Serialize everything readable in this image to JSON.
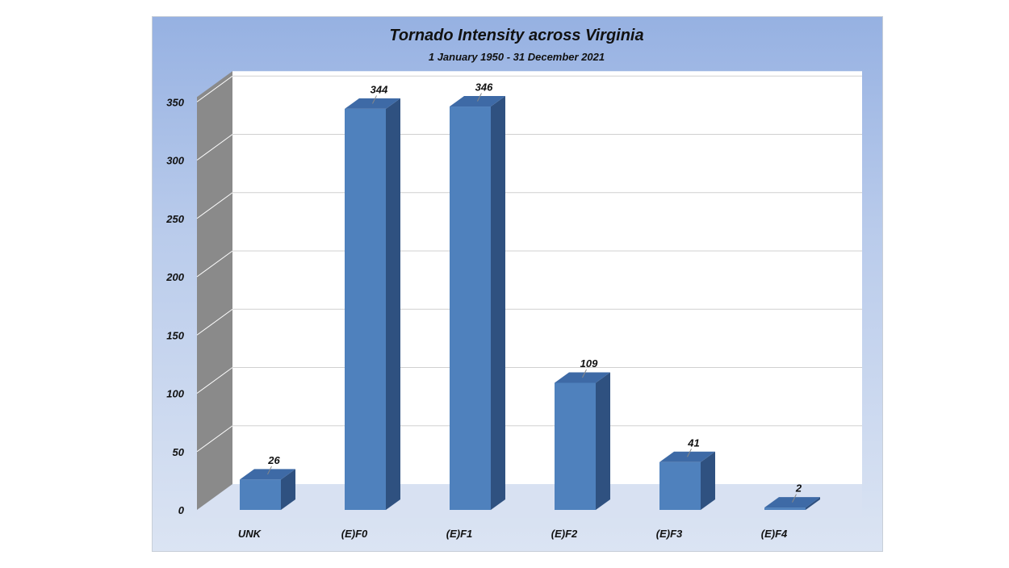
{
  "chart_data": {
    "type": "bar",
    "title": "Tornado Intensity across Virginia",
    "subtitle": "1 January 1950 - 31 December 2021",
    "categories": [
      "UNK",
      "(E)F0",
      "(E)F1",
      "(E)F2",
      "(E)F3",
      "(E)F4"
    ],
    "values": [
      26,
      344,
      346,
      109,
      41,
      2
    ],
    "ylim": [
      0,
      350
    ],
    "yticks": [
      "0",
      "50",
      "100",
      "150",
      "200",
      "250",
      "300",
      "350"
    ],
    "grid": true,
    "style": "3d-column",
    "colors": {
      "bar_front": "#4f81bd",
      "bar_top": "#3e6aa6",
      "bar_side": "#2f5180",
      "wall": "#8a8a8a",
      "floor": "#d8e1f2"
    }
  }
}
